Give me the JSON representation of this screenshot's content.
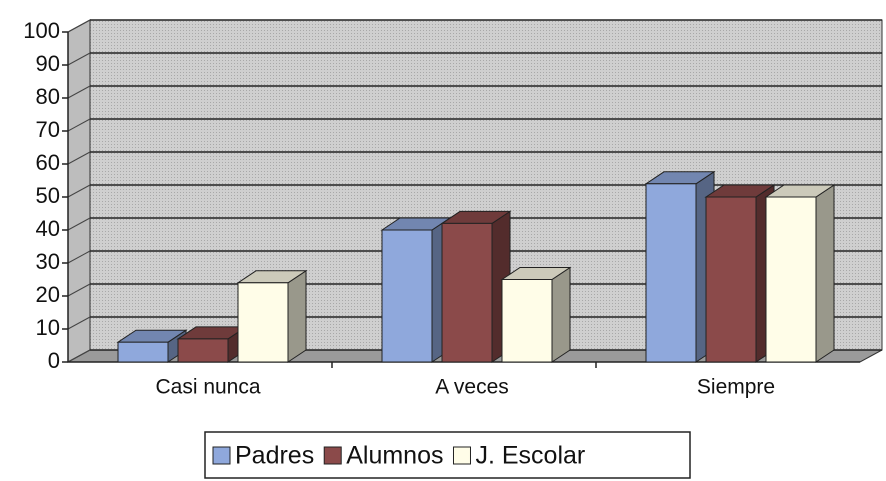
{
  "chart_data": {
    "type": "bar3d",
    "categories": [
      "Casi nunca",
      "A veces",
      "Siempre"
    ],
    "series": [
      {
        "name": "Padres",
        "color": "#8fa8dc",
        "values": [
          6,
          40,
          54
        ]
      },
      {
        "name": "Alumnos",
        "color": "#8b4a4a",
        "values": [
          7,
          42,
          50
        ]
      },
      {
        "name": "J. Escolar",
        "color": "#fffde8",
        "values": [
          24,
          25,
          50
        ]
      }
    ],
    "ylim": [
      0,
      100
    ],
    "yticks": [
      0,
      10,
      20,
      30,
      40,
      50,
      60,
      70,
      80,
      90,
      100
    ],
    "grid": true,
    "legend": "bottom"
  }
}
